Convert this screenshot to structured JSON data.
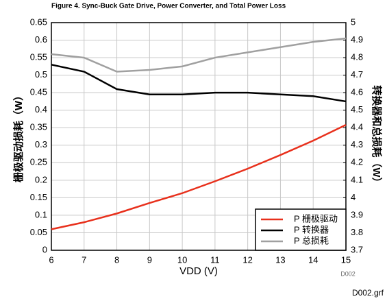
{
  "chart_data": {
    "type": "line",
    "title": "Figure 4. Sync-Buck Gate Drive, Power Converter, and Total Power Loss",
    "x_label": "VDD (V)",
    "y_label": "栅极驱动损耗（W）",
    "y2_label": "转换器和总损耗（W）",
    "annotations": [
      "D002",
      "D002.grf"
    ],
    "x": [
      6,
      7,
      8,
      9,
      10,
      11,
      12,
      13,
      14,
      15
    ],
    "xlim": [
      6,
      15
    ],
    "xticks": [
      6,
      7,
      8,
      9,
      10,
      11,
      12,
      13,
      14,
      15
    ],
    "ylim": [
      0,
      0.65
    ],
    "yticks": [
      0,
      0.05,
      0.1,
      0.15,
      0.2,
      0.25,
      0.3,
      0.35,
      0.4,
      0.45,
      0.5,
      0.55,
      0.6,
      0.65
    ],
    "y2lim": [
      3.7,
      5
    ],
    "y2ticks": [
      3.7,
      3.8,
      3.9,
      4,
      4.1,
      4.2,
      4.3,
      4.4,
      4.5,
      4.6,
      4.7,
      4.8,
      4.9,
      5
    ],
    "grid": true,
    "legend": "lower right",
    "series": [
      {
        "name": "P 栅极驱动",
        "color": "#e8301c",
        "values": [
          0.06,
          0.08,
          0.105,
          0.135,
          0.163,
          0.197,
          0.233,
          0.272,
          0.313,
          0.358
        ]
      },
      {
        "name": "P 转换器",
        "color": "#000000",
        "axis": "y2",
        "values": [
          4.76,
          4.72,
          4.62,
          4.59,
          4.59,
          4.6,
          4.6,
          4.59,
          4.58,
          4.55
        ]
      },
      {
        "name": "P 总损耗",
        "color": "#a0a0a0",
        "axis": "y2",
        "values": [
          4.82,
          4.8,
          4.72,
          4.73,
          4.75,
          4.8,
          4.83,
          4.86,
          4.89,
          4.91
        ]
      }
    ]
  }
}
